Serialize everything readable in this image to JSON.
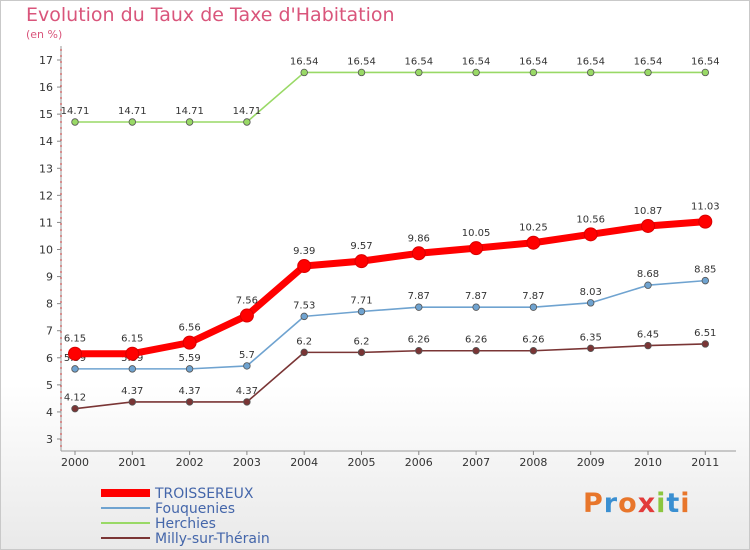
{
  "header": {
    "title": "Evolution du Taux de Taxe d'Habitation",
    "unit": "(en %)"
  },
  "logo": {
    "text": "Proxiti",
    "colors": [
      "#e8762b",
      "#3a8fd1",
      "#e8762b",
      "#e23b3b",
      "#8cc63f",
      "#3a8fd1",
      "#e8762b"
    ]
  },
  "chart_data": {
    "type": "line",
    "x": [
      "2000",
      "2001",
      "2002",
      "2003",
      "2004",
      "2005",
      "2006",
      "2007",
      "2008",
      "2009",
      "2010",
      "2011"
    ],
    "ylim": [
      3,
      17
    ],
    "yticks": [
      3,
      4,
      5,
      6,
      7,
      8,
      9,
      10,
      11,
      12,
      13,
      14,
      15,
      16,
      17
    ],
    "grid": false,
    "legend_position": "bottom-left",
    "series": [
      {
        "name": "Herchies",
        "color": "#99d966",
        "values": [
          14.71,
          14.71,
          14.71,
          14.71,
          16.54,
          16.54,
          16.54,
          16.54,
          16.54,
          16.54,
          16.54,
          16.54
        ],
        "labels": [
          "14.71",
          "14.71",
          "14.71",
          "14.71",
          "16.54",
          "16.54",
          "16.54",
          "16.54",
          "16.54",
          "16.54",
          "16.54",
          "16.54"
        ],
        "style": "thin"
      },
      {
        "name": "Fouquenies",
        "color": "#6fa3d0",
        "values": [
          5.59,
          5.59,
          5.59,
          5.7,
          7.53,
          7.71,
          7.87,
          7.87,
          7.87,
          8.03,
          8.68,
          8.85
        ],
        "labels": [
          "5.59",
          "5.59",
          "5.59",
          "5.7",
          "7.53",
          "7.71",
          "7.87",
          "7.87",
          "7.87",
          "8.03",
          "8.68",
          "8.85"
        ],
        "style": "thin"
      },
      {
        "name": "Milly-sur-Thérain",
        "color": "#7a3535",
        "values": [
          4.12,
          4.37,
          4.37,
          4.37,
          6.2,
          6.2,
          6.26,
          6.26,
          6.26,
          6.35,
          6.45,
          6.51
        ],
        "labels": [
          "4.12",
          "4.37",
          "4.37",
          "4.37",
          "6.2",
          "6.2",
          "6.26",
          "6.26",
          "6.26",
          "6.35",
          "6.45",
          "6.51"
        ],
        "style": "thin"
      },
      {
        "name": "TROISSEREUX",
        "color": "#ff0000",
        "values": [
          6.15,
          6.15,
          6.56,
          7.56,
          9.39,
          9.57,
          9.86,
          10.05,
          10.25,
          10.56,
          10.87,
          11.03
        ],
        "labels": [
          "6.15",
          "6.15",
          "6.56",
          "7.56",
          "9.39",
          "9.57",
          "9.86",
          "10.05",
          "10.25",
          "10.56",
          "10.87",
          "11.03"
        ],
        "style": "thick"
      }
    ],
    "legend": [
      "TROISSEREUX",
      "Fouquenies",
      "Herchies",
      "Milly-sur-Thérain"
    ]
  }
}
